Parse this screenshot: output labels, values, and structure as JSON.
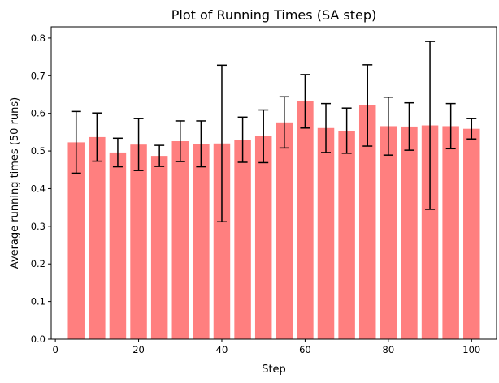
{
  "chart_data": {
    "type": "bar",
    "title": "Plot of Running Times (SA step)",
    "xlabel": "Step",
    "ylabel": "Average running times (50 runs)",
    "xlim": [
      -1,
      106
    ],
    "ylim": [
      0,
      0.83
    ],
    "xticks": [
      0,
      20,
      40,
      60,
      80,
      100
    ],
    "yticks": [
      0.0,
      0.1,
      0.2,
      0.3,
      0.4,
      0.5,
      0.6,
      0.7,
      0.8
    ],
    "xtick_labels": [
      "0",
      "20",
      "40",
      "60",
      "80",
      "100"
    ],
    "ytick_labels": [
      "0.0",
      "0.1",
      "0.2",
      "0.3",
      "0.4",
      "0.5",
      "0.6",
      "0.7",
      "0.8"
    ],
    "bar_width": 4,
    "bar_color": "#ff7f7f",
    "error_color": "#000000",
    "grid": false,
    "x": [
      5,
      10,
      15,
      20,
      25,
      30,
      35,
      40,
      45,
      50,
      55,
      60,
      65,
      70,
      75,
      80,
      85,
      90,
      95,
      100
    ],
    "values": [
      0.523,
      0.537,
      0.496,
      0.517,
      0.487,
      0.526,
      0.519,
      0.52,
      0.53,
      0.539,
      0.576,
      0.632,
      0.561,
      0.554,
      0.621,
      0.566,
      0.565,
      0.568,
      0.566,
      0.559
    ],
    "errors": [
      0.082,
      0.064,
      0.038,
      0.069,
      0.028,
      0.054,
      0.061,
      0.208,
      0.06,
      0.07,
      0.068,
      0.071,
      0.065,
      0.06,
      0.108,
      0.077,
      0.063,
      0.223,
      0.06,
      0.027
    ]
  }
}
